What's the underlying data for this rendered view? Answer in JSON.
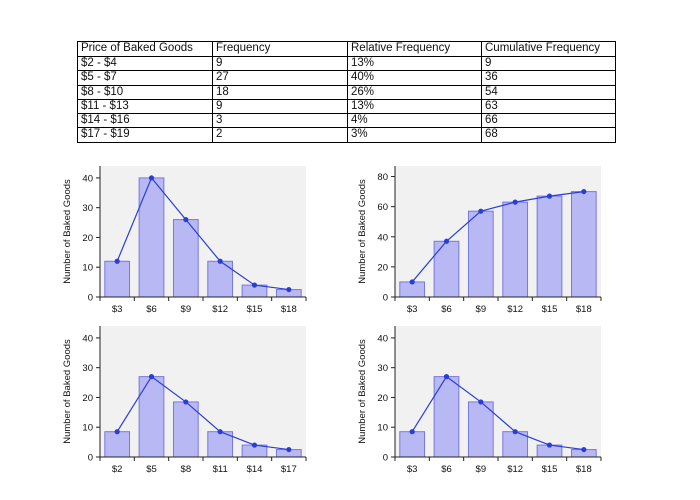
{
  "table": {
    "headers": [
      "Price of Baked Goods",
      "Frequency",
      "Relative Frequency",
      "Cumulative Frequency"
    ],
    "rows": [
      [
        "$2 - $4",
        "9",
        "13%",
        "9"
      ],
      [
        "$5 - $7",
        "27",
        "40%",
        "36"
      ],
      [
        "$8 - $10",
        "18",
        "26%",
        "54"
      ],
      [
        "$11 - $13",
        "9",
        "13%",
        "63"
      ],
      [
        "$14 - $16",
        "3",
        "4%",
        "66"
      ],
      [
        "$17 - $19",
        "2",
        "3%",
        "68"
      ]
    ]
  },
  "colors": {
    "bar_fill": "#b8b8f5",
    "bar_stroke": "#7878dc",
    "line": "#2a3ed6",
    "plot_bg": "#f1f1f1",
    "axis": "#222222"
  },
  "chart_data": [
    {
      "type": "bar",
      "overlay": "line",
      "categories": [
        "$3",
        "$6",
        "$9",
        "$12",
        "$15",
        "$18"
      ],
      "values": [
        12,
        40,
        26,
        12,
        4,
        2.5
      ],
      "line_values": [
        12,
        40,
        26,
        12,
        4,
        2.5
      ],
      "ylabel": "Number of Baked Goods",
      "yticks": [
        0,
        10,
        20,
        30,
        40
      ],
      "ylim": [
        0,
        44
      ],
      "grid": false
    },
    {
      "type": "bar",
      "overlay": "line",
      "categories": [
        "$3",
        "$6",
        "$9",
        "$12",
        "$15",
        "$18"
      ],
      "values": [
        10,
        37,
        57,
        63,
        67,
        70
      ],
      "line_values": [
        10,
        37,
        57,
        63,
        67,
        70
      ],
      "ylabel": "Number of Baked Goods",
      "yticks": [
        0,
        20,
        40,
        60,
        80
      ],
      "ylim": [
        0,
        87
      ],
      "grid": false
    },
    {
      "type": "bar",
      "overlay": "line",
      "categories": [
        "$2",
        "$5",
        "$8",
        "$11",
        "$14",
        "$17"
      ],
      "values": [
        8.5,
        27,
        18.5,
        8.5,
        4,
        2.5
      ],
      "line_values": [
        8.5,
        27,
        18.5,
        8.5,
        4,
        2.5
      ],
      "ylabel": "Number of Baked Goods",
      "yticks": [
        0,
        10,
        20,
        30,
        40
      ],
      "ylim": [
        0,
        44
      ],
      "grid": false
    },
    {
      "type": "bar",
      "overlay": "line",
      "categories": [
        "$3",
        "$6",
        "$9",
        "$12",
        "$15",
        "$18"
      ],
      "values": [
        8.5,
        27,
        18.5,
        8.5,
        4,
        2.5
      ],
      "line_values": [
        8.5,
        27,
        18.5,
        8.5,
        4,
        2.5
      ],
      "ylabel": "Number of Baked Goods",
      "yticks": [
        0,
        10,
        20,
        30,
        40
      ],
      "ylim": [
        0,
        44
      ],
      "grid": false
    }
  ]
}
